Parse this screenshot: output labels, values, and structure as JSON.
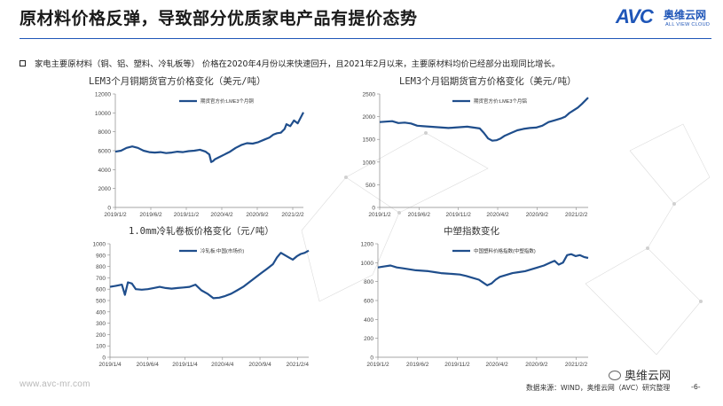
{
  "header": {
    "title": "原材料价格反弹，导致部分优质家电产品有提价态势",
    "logo_avc": "AVC",
    "logo_cn": "奥维云网",
    "logo_en": "ALL VIEW CLOUD",
    "brand_color": "#1f56b8"
  },
  "bullet": {
    "text": "家电主要原材料（铜、铝、塑料、冷轧板等） 价格在2020年4月份以来快速回升，且2021年2月以来，主要原材料均价已经部分出现同比增长。"
  },
  "footer": {
    "website": "www.avc-mr.com",
    "source": "数据来源：WIND，奥维云网（AVC）研究整理",
    "page": "-6-",
    "wechat": "奥维云网"
  },
  "line_color": "#1f4e8c",
  "chart_data": [
    {
      "id": "copper",
      "type": "line",
      "title": "LEM3个月铜期货官方价格变化（美元/吨）",
      "legend": "期货官方价:LME3个月铜",
      "ylim": [
        0,
        12000
      ],
      "yticks": [
        0,
        2000,
        4000,
        6000,
        8000,
        10000,
        12000
      ],
      "xticks": [
        "2019/1/2",
        "2019/6/2",
        "2019/11/2",
        "2020/4/2",
        "2020/9/2",
        "2021/2/2"
      ],
      "x": [
        0,
        0.03,
        0.06,
        0.09,
        0.12,
        0.15,
        0.18,
        0.21,
        0.24,
        0.27,
        0.3,
        0.33,
        0.36,
        0.39,
        0.42,
        0.45,
        0.48,
        0.5,
        0.51,
        0.52,
        0.53,
        0.55,
        0.58,
        0.61,
        0.64,
        0.67,
        0.7,
        0.73,
        0.76,
        0.79,
        0.82,
        0.84,
        0.86,
        0.88,
        0.9,
        0.91,
        0.93,
        0.95,
        0.97,
        1.0
      ],
      "values": [
        5900,
        6000,
        6300,
        6450,
        6300,
        6000,
        5850,
        5800,
        5850,
        5750,
        5800,
        5900,
        5850,
        5950,
        6000,
        6100,
        5900,
        5600,
        4800,
        4900,
        5100,
        5300,
        5600,
        5900,
        6300,
        6600,
        6800,
        6750,
        6900,
        7150,
        7400,
        7700,
        7850,
        7900,
        8300,
        8800,
        8600,
        9200,
        8900,
        10050
      ]
    },
    {
      "id": "aluminum",
      "type": "line",
      "title": "LEM3个月铝期货官方价格变化（美元/吨）",
      "legend": "期货官方价:LME3个月铝",
      "ylim": [
        0,
        2500
      ],
      "yticks": [
        0,
        500,
        1000,
        1500,
        2000,
        2500
      ],
      "xticks": [
        "2019/1/2",
        "2019/6/2",
        "2019/11/2",
        "2020/4/2",
        "2020/9/2",
        "2021/2/2"
      ],
      "x": [
        0,
        0.03,
        0.06,
        0.09,
        0.12,
        0.15,
        0.18,
        0.21,
        0.24,
        0.27,
        0.3,
        0.33,
        0.36,
        0.39,
        0.42,
        0.45,
        0.48,
        0.5,
        0.52,
        0.54,
        0.56,
        0.58,
        0.6,
        0.63,
        0.66,
        0.69,
        0.72,
        0.75,
        0.78,
        0.81,
        0.84,
        0.87,
        0.89,
        0.91,
        0.93,
        0.95,
        0.97,
        1.0
      ],
      "values": [
        1880,
        1890,
        1900,
        1860,
        1870,
        1850,
        1800,
        1790,
        1780,
        1770,
        1760,
        1750,
        1760,
        1770,
        1780,
        1760,
        1740,
        1640,
        1520,
        1470,
        1480,
        1520,
        1580,
        1640,
        1700,
        1730,
        1750,
        1760,
        1800,
        1880,
        1920,
        1960,
        2000,
        2080,
        2140,
        2200,
        2280,
        2420
      ]
    },
    {
      "id": "cold_rolled",
      "type": "line",
      "title": "1.0mm冷轧卷板价格变化（元/吨）",
      "legend": "冷轧板:中国(市场价)",
      "ylim": [
        0,
        1000
      ],
      "yticks": [
        0,
        100,
        200,
        300,
        400,
        500,
        600,
        700,
        800,
        900,
        1000
      ],
      "xticks": [
        "2019/1/4",
        "2019/6/4",
        "2019/11/4",
        "2020/4/4",
        "2020/9/4",
        "2021/2/4"
      ],
      "x": [
        0,
        0.03,
        0.06,
        0.075,
        0.09,
        0.11,
        0.13,
        0.16,
        0.19,
        0.22,
        0.25,
        0.28,
        0.31,
        0.34,
        0.37,
        0.4,
        0.43,
        0.46,
        0.49,
        0.52,
        0.55,
        0.58,
        0.61,
        0.64,
        0.67,
        0.7,
        0.73,
        0.76,
        0.79,
        0.82,
        0.84,
        0.86,
        0.88,
        0.9,
        0.92,
        0.94,
        0.96,
        0.98,
        1.0
      ],
      "values": [
        620,
        630,
        640,
        550,
        660,
        650,
        600,
        595,
        600,
        610,
        620,
        610,
        605,
        610,
        615,
        620,
        640,
        590,
        560,
        520,
        525,
        540,
        560,
        590,
        620,
        660,
        700,
        740,
        780,
        820,
        880,
        920,
        900,
        880,
        860,
        890,
        910,
        920,
        940
      ]
    },
    {
      "id": "plastic",
      "type": "line",
      "title": "中塑指数变化",
      "legend": "中国塑料价格指数(中塑指数)",
      "ylim": [
        0,
        1200
      ],
      "yticks": [
        0,
        200,
        400,
        600,
        800,
        1000,
        1200
      ],
      "xticks": [
        "2019/1/2",
        "2019/6/2",
        "2019/11/2",
        "2020/4/2",
        "2020/9/2",
        "2021/2/2"
      ],
      "x": [
        0,
        0.03,
        0.06,
        0.09,
        0.12,
        0.15,
        0.18,
        0.21,
        0.24,
        0.27,
        0.3,
        0.33,
        0.36,
        0.39,
        0.42,
        0.45,
        0.48,
        0.5,
        0.52,
        0.54,
        0.56,
        0.58,
        0.61,
        0.64,
        0.67,
        0.7,
        0.73,
        0.76,
        0.79,
        0.82,
        0.84,
        0.86,
        0.88,
        0.9,
        0.92,
        0.94,
        0.96,
        0.98,
        1.0
      ],
      "values": [
        950,
        960,
        970,
        950,
        940,
        930,
        920,
        915,
        910,
        900,
        890,
        885,
        880,
        875,
        860,
        840,
        820,
        790,
        760,
        780,
        820,
        850,
        870,
        890,
        900,
        910,
        930,
        950,
        970,
        1000,
        1020,
        980,
        1000,
        1080,
        1090,
        1070,
        1080,
        1060,
        1050
      ]
    }
  ]
}
